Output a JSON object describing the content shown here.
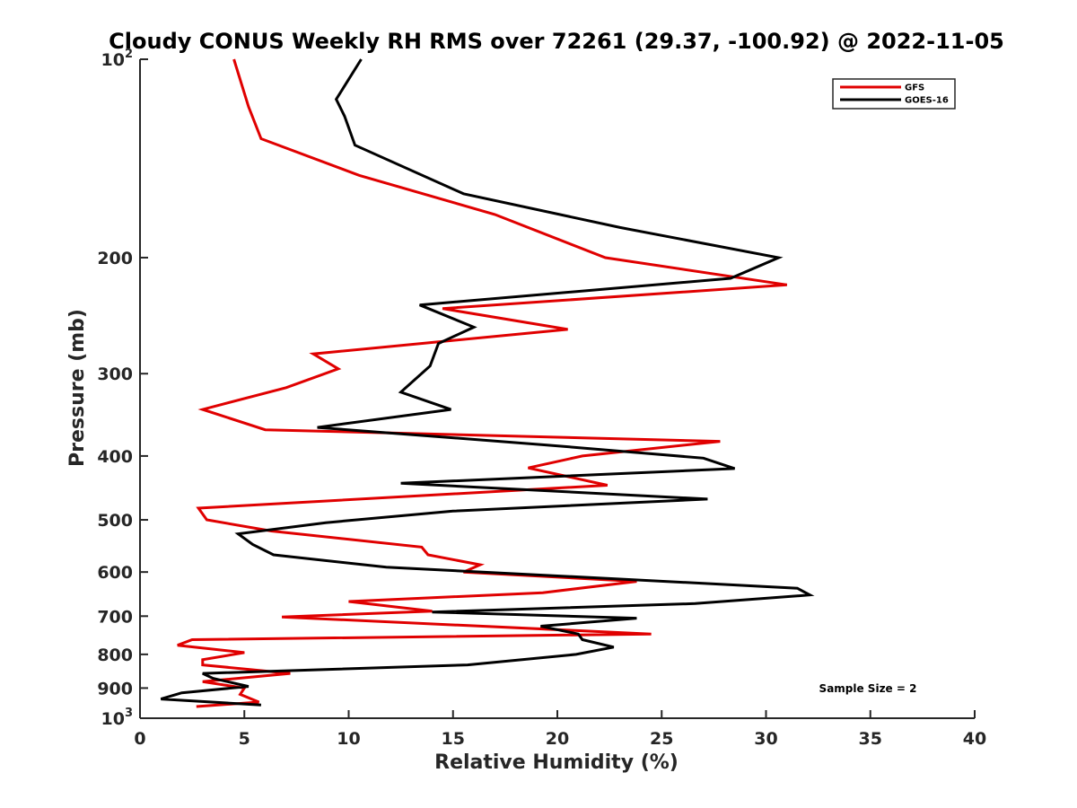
{
  "chart_data": {
    "type": "line",
    "title": "Cloudy CONUS Weekly RH RMS over 72261 (29.37, -100.92) @ 2022-11-05",
    "xlabel": "Relative Humidity (%)",
    "ylabel": "Pressure (mb)",
    "xlim": [
      0,
      40
    ],
    "ylim": [
      100,
      1000
    ],
    "y_scale": "log",
    "y_inverted": true,
    "grid": false,
    "legend_position": "top-right",
    "x_ticks": [
      "0",
      "5",
      "10",
      "15",
      "20",
      "25",
      "30",
      "35",
      "40"
    ],
    "y_ticks": [
      {
        "value": 100,
        "base": "10",
        "exp": "2"
      },
      {
        "value": 200,
        "label": "200"
      },
      {
        "value": 300,
        "label": "300"
      },
      {
        "value": 400,
        "label": "400"
      },
      {
        "value": 500,
        "label": "500"
      },
      {
        "value": 600,
        "label": "600"
      },
      {
        "value": 700,
        "label": "700"
      },
      {
        "value": 800,
        "label": "800"
      },
      {
        "value": 900,
        "label": "900"
      },
      {
        "value": 1000,
        "base": "10",
        "exp": "3"
      }
    ],
    "annotation": "Sample Size = 2",
    "series": [
      {
        "name": "GFS",
        "color": "#e00000",
        "x": [
          4.5,
          5.2,
          5.8,
          10.5,
          17,
          22.3,
          31,
          14.5,
          20.5,
          8.3,
          9.5,
          7,
          3,
          6,
          27.8,
          21.2,
          18.6,
          22.4,
          2.8,
          3.2,
          6.3,
          13.5,
          13.8,
          16.3,
          15.5,
          23.8,
          19.3,
          10,
          14,
          6.8,
          24.5,
          2.5,
          1.8,
          5,
          3,
          3,
          7.2,
          3,
          5,
          4.8,
          5.7,
          2.7
        ],
        "y": [
          100,
          118,
          132,
          150,
          172,
          200,
          220,
          239,
          257,
          280,
          295,
          315,
          340,
          365,
          380,
          400,
          417,
          443,
          480,
          500,
          520,
          550,
          565,
          585,
          600,
          620,
          645,
          665,
          688,
          702,
          745,
          760,
          775,
          795,
          815,
          830,
          855,
          880,
          900,
          920,
          945,
          960
        ]
      },
      {
        "name": "GOES-16",
        "color": "#000000",
        "x": [
          10.6,
          9.4,
          9.8,
          10.3,
          15.5,
          23,
          30.6,
          28.3,
          13.4,
          16,
          14.3,
          13.9,
          12.5,
          14.9,
          8.5,
          19.5,
          27,
          28.5,
          12.5,
          27.2,
          15,
          8.9,
          4.7,
          5.4,
          6.4,
          11.8,
          23,
          31.5,
          32.1,
          26.6,
          14,
          23.8,
          19.2,
          21,
          21.2,
          22.7,
          20.9,
          15.7,
          3,
          3.5,
          5.2,
          2,
          1,
          5.8
        ],
        "y": [
          100,
          115,
          122,
          135,
          160,
          180,
          200,
          215,
          236,
          255,
          270,
          292,
          320,
          340,
          362,
          385,
          403,
          418,
          440,
          465,
          485,
          505,
          525,
          545,
          565,
          590,
          615,
          635,
          650,
          670,
          690,
          705,
          725,
          745,
          760,
          780,
          800,
          830,
          855,
          870,
          895,
          915,
          935,
          955
        ]
      }
    ]
  }
}
